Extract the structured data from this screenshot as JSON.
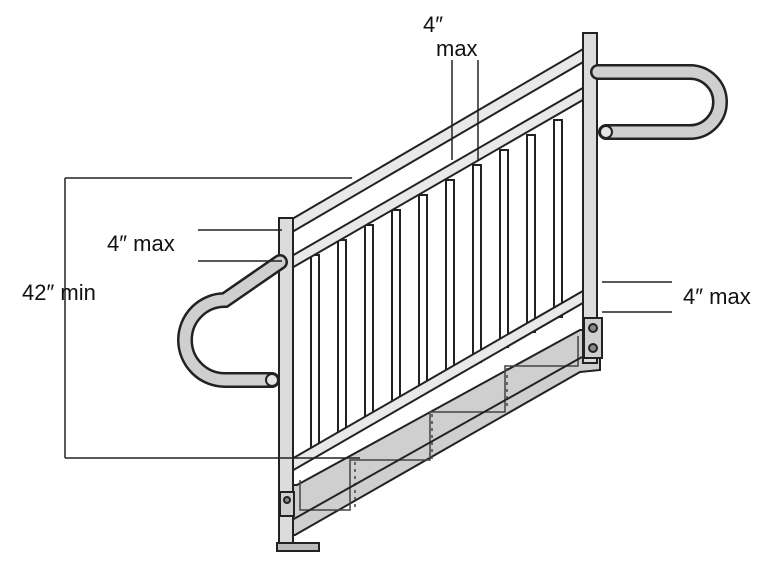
{
  "labels": {
    "top_line1": "4″",
    "top_line2": "max",
    "left_spacing": "4″ max",
    "height": "42″ min",
    "bottom_gap": "4″ max"
  },
  "colors": {
    "steel": "#bdbdbd",
    "outline": "#222222",
    "steps": "#cfcfcf"
  },
  "components": [
    "handrail",
    "guardrail",
    "balusters",
    "stair-stringer",
    "steps",
    "posts",
    "dimension-lines"
  ]
}
